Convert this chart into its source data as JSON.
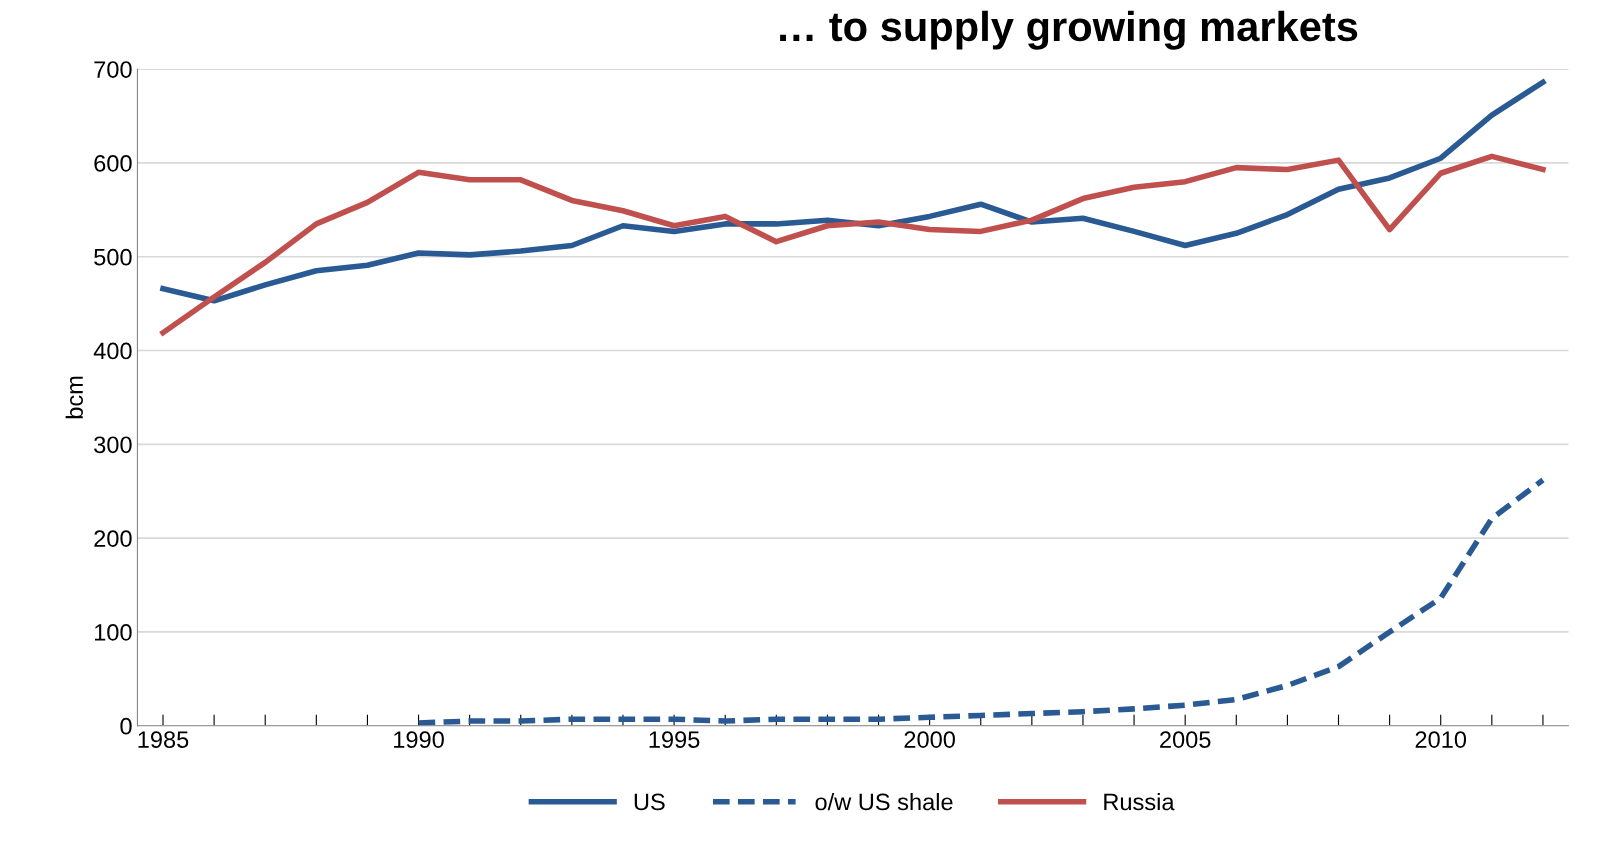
{
  "chart_data": {
    "type": "line",
    "title": "… to supply growing markets",
    "ylabel": "bcm",
    "x": [
      1985,
      1986,
      1987,
      1988,
      1989,
      1990,
      1991,
      1992,
      1993,
      1994,
      1995,
      1996,
      1997,
      1998,
      1999,
      2000,
      2001,
      2002,
      2003,
      2004,
      2005,
      2006,
      2007,
      2008,
      2009,
      2010,
      2011,
      2012
    ],
    "series": [
      {
        "name": "US",
        "color": "#2a5a93",
        "line_style": "solid",
        "values": [
          466,
          453,
          470,
          485,
          491,
          504,
          502,
          506,
          512,
          533,
          527,
          535,
          535,
          539,
          533,
          543,
          556,
          537,
          541,
          527,
          512,
          525,
          545,
          572,
          584,
          605,
          651,
          686
        ]
      },
      {
        "name": "o/w US shale",
        "color": "#2a5a93",
        "line_style": "dashed",
        "values": [
          null,
          null,
          null,
          null,
          null,
          3,
          5,
          5,
          7,
          7,
          7,
          5,
          7,
          7,
          7,
          9,
          11,
          13,
          15,
          18,
          22,
          28,
          43,
          63,
          100,
          136,
          221,
          262
        ]
      },
      {
        "name": "Russia",
        "color": "#c0504d",
        "line_style": "solid",
        "values": [
          419,
          457,
          494,
          535,
          558,
          590,
          582,
          582,
          560,
          549,
          533,
          543,
          516,
          533,
          537,
          529,
          527,
          539,
          562,
          574,
          580,
          595,
          593,
          603,
          529,
          589,
          607,
          593
        ]
      }
    ],
    "xlim": [
      1984.5,
      2012.5
    ],
    "xticks": [
      1985,
      {
        "value": 1986,
        "label": null
      },
      {
        "value": 1987,
        "label": null
      },
      {
        "value": 1988,
        "label": null
      },
      {
        "value": 1989,
        "label": null
      },
      1990,
      {
        "value": 1991,
        "label": null
      },
      {
        "value": 1992,
        "label": null
      },
      {
        "value": 1993,
        "label": null
      },
      {
        "value": 1994,
        "label": null
      },
      1995,
      {
        "value": 1996,
        "label": null
      },
      {
        "value": 1997,
        "label": null
      },
      {
        "value": 1998,
        "label": null
      },
      {
        "value": 1999,
        "label": null
      },
      2000,
      {
        "value": 2001,
        "label": null
      },
      {
        "value": 2002,
        "label": null
      },
      {
        "value": 2003,
        "label": null
      },
      {
        "value": 2004,
        "label": null
      },
      2005,
      {
        "value": 2006,
        "label": null
      },
      {
        "value": 2007,
        "label": null
      },
      {
        "value": 2008,
        "label": null
      },
      {
        "value": 2009,
        "label": null
      },
      2010,
      {
        "value": 2011,
        "label": null
      },
      {
        "value": 2012,
        "label": null
      }
    ],
    "ylim": [
      0,
      700
    ],
    "yticks": [
      0,
      100,
      200,
      300,
      400,
      500,
      600,
      700
    ],
    "grid": "y",
    "legend": "bottom",
    "marker": "none"
  }
}
